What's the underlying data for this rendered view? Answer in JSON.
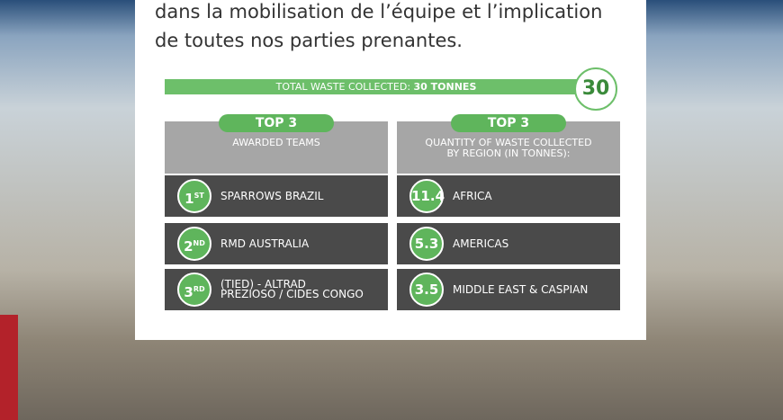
{
  "intro": [
    "dans la mobilisation de l’équipe et l’implication",
    "de toutes nos parties prenantes."
  ],
  "total": {
    "label": "TOTAL WASTE COLLECTED:",
    "value": "30 TONNES",
    "badge": "30"
  },
  "panels": [
    {
      "title": "TOP 3",
      "subtitle": [
        "AWARDED TEAMS"
      ],
      "rows": [
        {
          "rank": "1",
          "suffix": "ST",
          "name": [
            "SPARROWS BRAZIL"
          ]
        },
        {
          "rank": "2",
          "suffix": "ND",
          "name": [
            "RMD AUSTRALIA"
          ]
        },
        {
          "rank": "3",
          "suffix": "RD",
          "name": [
            "(TIED) - ALTRAD",
            "PREZIOSO / CIDES CONGO"
          ]
        }
      ]
    },
    {
      "title": "TOP 3",
      "subtitle": [
        "QUANTITY OF WASTE COLLECTED",
        "BY REGION (IN TONNES):"
      ],
      "rows": [
        {
          "rank": "11.4",
          "name": [
            "AFRICA"
          ]
        },
        {
          "rank": "5.3",
          "name": [
            "AMERICAS"
          ]
        },
        {
          "rank": "3.5",
          "name": [
            "MIDDLE EAST & CASPIAN"
          ]
        }
      ]
    }
  ]
}
